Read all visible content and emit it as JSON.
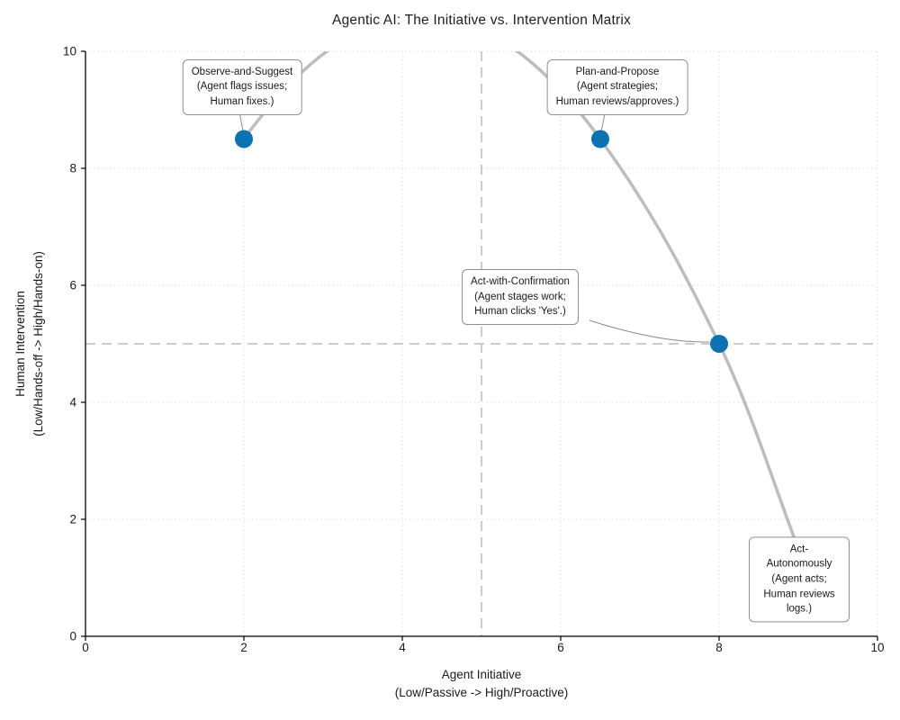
{
  "chart_data": {
    "type": "scatter",
    "title": "Agentic AI: The Initiative vs. Intervention Matrix",
    "xlabel": "Agent Initiative\n(Low/Passive -> High/Proactive)",
    "ylabel": "Human Intervention\n(Low/Hands-off -> High/Hands-on)",
    "xlim": [
      0,
      10
    ],
    "ylim": [
      0,
      10
    ],
    "xticks": [
      0,
      2,
      4,
      6,
      8,
      10
    ],
    "yticks": [
      0,
      2,
      4,
      6,
      8,
      10
    ],
    "grid": "dotted gridlines at every tick",
    "legend": "none",
    "quadrant_lines": {
      "x": 5,
      "y": 5,
      "style": "dashed"
    },
    "points": [
      {
        "x": 2,
        "y": 8.5,
        "label": "Observe-and-Suggest\n(Agent flags issues;\nHuman fixes.)",
        "label_placement": "above",
        "label_offset": [
          -2,
          -58
        ]
      },
      {
        "x": 6.5,
        "y": 8.5,
        "label": "Plan-and-Propose\n(Agent strategies;\nHuman reviews/approves.)",
        "label_placement": "above",
        "label_offset": [
          19,
          -58
        ]
      },
      {
        "x": 8,
        "y": 5,
        "label": "Act-with-Confirmation\n(Agent stages work;\nHuman clicks 'Yes'.)",
        "label_placement": "left-above",
        "label_offset": [
          -221,
          -52
        ]
      },
      {
        "x": 9,
        "y": 1.5,
        "label": "Act-Autonomously\n(Agent acts;\nHuman reviews logs.)",
        "label_placement": "below",
        "label_offset": [
          1,
          34
        ]
      }
    ],
    "trend_curve": {
      "description": "smooth gray spline through all four points, bulging above the top axis (clipped) between the first two points",
      "peak": {
        "x": 4.25,
        "y": 10.6
      },
      "clipped_at_top": true
    },
    "colors": {
      "point": "#0d72b1",
      "curve": "#bdbdbd",
      "quadrant_line": "#cccccc",
      "grid": "#dedede",
      "axis": "#000000",
      "connector": "#8c8c8c",
      "annotation_border": "#8f8f8f",
      "text": "#1a1a1a"
    }
  }
}
